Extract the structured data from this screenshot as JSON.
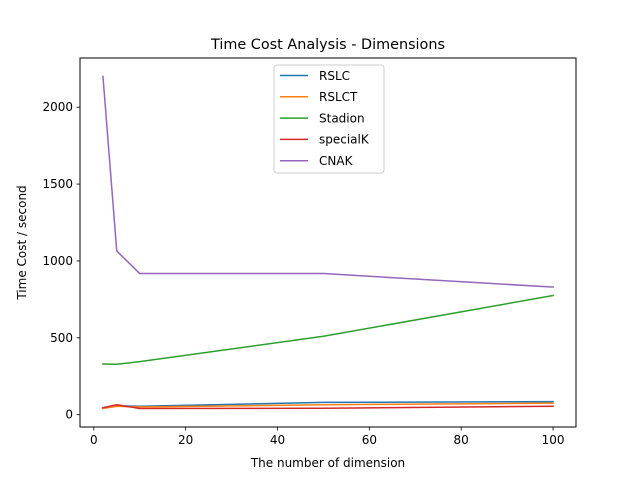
{
  "chart_data": {
    "type": "line",
    "title": "Time Cost Analysis - Dimensions",
    "xlabel": "The number of dimension",
    "ylabel": "Time Cost / second",
    "xlim": [
      -3,
      105
    ],
    "ylim": [
      -80,
      2320
    ],
    "xticks": [
      0,
      20,
      40,
      60,
      80,
      100
    ],
    "yticks": [
      0,
      500,
      1000,
      1500,
      2000
    ],
    "grid": false,
    "legend": "upper center",
    "series": [
      {
        "name": "RSLC",
        "color": "#1f77b4",
        "x": [
          2,
          5,
          10,
          50,
          100
        ],
        "y": [
          45,
          58,
          55,
          80,
          85
        ]
      },
      {
        "name": "RSLCT",
        "color": "#ff7f0e",
        "x": [
          2,
          5,
          10,
          50,
          100
        ],
        "y": [
          40,
          55,
          50,
          65,
          75
        ]
      },
      {
        "name": "Stadion",
        "color": "#2ca02c",
        "x": [
          2,
          5,
          10,
          50,
          100
        ],
        "y": [
          330,
          328,
          345,
          510,
          775
        ]
      },
      {
        "name": "specialK",
        "color": "#d62728",
        "x": [
          2,
          5,
          10,
          50,
          100
        ],
        "y": [
          45,
          65,
          40,
          42,
          55
        ]
      },
      {
        "name": "CNAK",
        "color": "#9467bd",
        "x": [
          2,
          5,
          10,
          50,
          100
        ],
        "y": [
          2200,
          1065,
          918,
          918,
          830
        ]
      }
    ]
  }
}
